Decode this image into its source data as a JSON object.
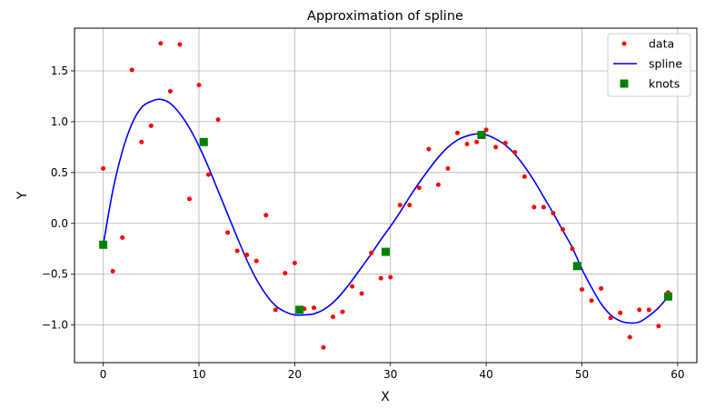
{
  "chart_data": {
    "type": "scatter",
    "title": "Approximation of spline",
    "xlabel": "X",
    "ylabel": "Y",
    "xlim": [
      -3,
      62
    ],
    "ylim": [
      -1.37,
      1.92
    ],
    "xticks": [
      0,
      10,
      20,
      30,
      40,
      50,
      60
    ],
    "yticks": [
      -1.0,
      -0.5,
      0.0,
      0.5,
      1.0,
      1.5
    ],
    "xtick_labels": [
      "0",
      "10",
      "20",
      "30",
      "40",
      "50",
      "60"
    ],
    "ytick_labels": [
      "−1.0",
      "−0.5",
      "0.0",
      "0.5",
      "1.0",
      "1.5"
    ],
    "grid": true,
    "legend_position": "top-right",
    "series": [
      {
        "name": "data",
        "kind": "points",
        "marker": "dot",
        "color": "#ff0000",
        "x": [
          0,
          1,
          2,
          3,
          4,
          5,
          6,
          7,
          8,
          9,
          10,
          11,
          12,
          13,
          14,
          15,
          16,
          17,
          18,
          19,
          20,
          21,
          22,
          23,
          24,
          25,
          26,
          27,
          28,
          29,
          30,
          31,
          32,
          33,
          34,
          35,
          36,
          37,
          38,
          39,
          40,
          41,
          42,
          43,
          44,
          45,
          46,
          47,
          48,
          49,
          50,
          51,
          52,
          53,
          54,
          55,
          56,
          57,
          58,
          59
        ],
        "y": [
          0.54,
          -0.47,
          -0.14,
          1.51,
          0.8,
          0.96,
          1.77,
          1.3,
          1.76,
          0.24,
          1.36,
          0.48,
          1.02,
          -0.09,
          -0.27,
          -0.31,
          -0.37,
          0.08,
          -0.85,
          -0.49,
          -0.39,
          -0.84,
          -0.83,
          -1.22,
          -0.92,
          -0.87,
          -0.62,
          -0.69,
          -0.29,
          -0.54,
          -0.53,
          0.18,
          0.18,
          0.35,
          0.73,
          0.38,
          0.54,
          0.89,
          0.78,
          0.8,
          0.92,
          0.75,
          0.79,
          0.7,
          0.46,
          0.16,
          0.16,
          0.1,
          -0.06,
          -0.25,
          -0.65,
          -0.76,
          -0.64,
          -0.93,
          -0.88,
          -1.12,
          -0.85,
          -0.85,
          -1.01,
          -0.68
        ]
      },
      {
        "name": "spline",
        "kind": "line",
        "color": "#0000ff",
        "x": [
          0,
          1,
          2,
          3,
          4,
          5,
          6,
          7,
          8,
          9,
          10,
          11,
          12,
          13,
          14,
          15,
          16,
          17,
          18,
          19,
          20,
          21,
          22,
          23,
          24,
          25,
          26,
          27,
          28,
          29,
          30,
          31,
          32,
          33,
          34,
          35,
          36,
          37,
          38,
          39,
          40,
          41,
          42,
          43,
          44,
          45,
          46,
          47,
          48,
          49,
          50,
          51,
          52,
          53,
          54,
          55,
          56,
          57,
          58,
          59
        ],
        "y": [
          -0.21,
          0.32,
          0.71,
          0.98,
          1.14,
          1.2,
          1.22,
          1.18,
          1.08,
          0.94,
          0.76,
          0.55,
          0.32,
          0.09,
          -0.14,
          -0.36,
          -0.55,
          -0.7,
          -0.81,
          -0.87,
          -0.9,
          -0.9,
          -0.89,
          -0.85,
          -0.78,
          -0.68,
          -0.56,
          -0.43,
          -0.3,
          -0.16,
          -0.03,
          0.11,
          0.26,
          0.4,
          0.53,
          0.65,
          0.75,
          0.82,
          0.86,
          0.88,
          0.87,
          0.83,
          0.77,
          0.68,
          0.56,
          0.42,
          0.26,
          0.1,
          -0.07,
          -0.24,
          -0.45,
          -0.63,
          -0.79,
          -0.9,
          -0.96,
          -0.98,
          -0.97,
          -0.91,
          -0.83,
          -0.72
        ]
      },
      {
        "name": "knots",
        "kind": "points",
        "marker": "square",
        "color": "#008000",
        "x": [
          0,
          10.5,
          20.5,
          29.5,
          39.5,
          49.5,
          59
        ],
        "y": [
          -0.21,
          0.8,
          -0.85,
          -0.28,
          0.87,
          -0.42,
          -0.72
        ]
      }
    ]
  }
}
